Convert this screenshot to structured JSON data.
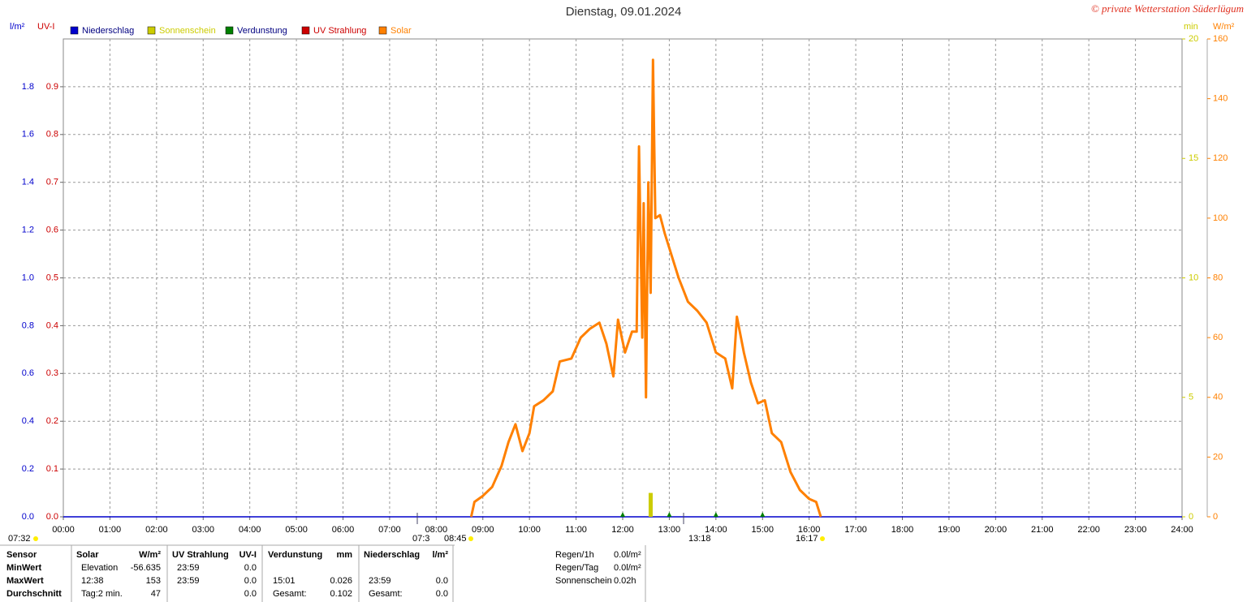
{
  "chart_data": {
    "type": "line",
    "title": "Dienstag, 09.01.2024",
    "copyright": "© private Wetterstation Süderlügum",
    "ylabel": "l/m²",
    "y3label": "UV-I",
    "y4label": "min",
    "y2label": "W/m²",
    "xlim": [
      0,
      24
    ],
    "xticks": [
      {
        "value": 0,
        "label": "00:00"
      },
      {
        "value": 1,
        "label": "01:00"
      },
      {
        "value": 2,
        "label": "02:00"
      },
      {
        "value": 3,
        "label": "03:00"
      },
      {
        "value": 4,
        "label": "04:00"
      },
      {
        "value": 5,
        "label": "05:00"
      },
      {
        "value": 6,
        "label": "06:00"
      },
      {
        "value": 7,
        "label": "07:00"
      },
      {
        "value": 8,
        "label": "08:00"
      },
      {
        "value": 9,
        "label": "09:00"
      },
      {
        "value": 10,
        "label": "10:00"
      },
      {
        "value": 11,
        "label": "11:00"
      },
      {
        "value": 12,
        "label": "12:00"
      },
      {
        "value": 13,
        "label": "13:00"
      },
      {
        "value": 14,
        "label": "14:00"
      },
      {
        "value": 15,
        "label": "15:00"
      },
      {
        "value": 16,
        "label": "16:00"
      },
      {
        "value": 17,
        "label": "17:00"
      },
      {
        "value": 18,
        "label": "18:00"
      },
      {
        "value": 19,
        "label": "19:00"
      },
      {
        "value": 20,
        "label": "20:00"
      },
      {
        "value": 21,
        "label": "21:00"
      },
      {
        "value": 22,
        "label": "22:00"
      },
      {
        "value": 23,
        "label": "23:00"
      },
      {
        "value": 24,
        "label": "24:00"
      }
    ],
    "ylim": [
      0,
      2
    ],
    "yticks": [
      {
        "value": 0,
        "label": "0.0"
      },
      0.2,
      0.4,
      0.6,
      0.8,
      {
        "value": 1,
        "label": "1.0"
      },
      {
        "value": 1.2,
        "label": "1.2"
      },
      {
        "value": 1.4,
        "label": "1.4"
      },
      {
        "value": 1.6,
        "label": "1.6"
      },
      {
        "value": 1.8,
        "label": "1.8"
      }
    ],
    "y3lim": [
      0,
      1
    ],
    "y3ticks": [
      {
        "value": 0,
        "label": "0.0"
      },
      0.1,
      0.2,
      0.3,
      0.4,
      0.5,
      0.6,
      0.7,
      0.8,
      0.9
    ],
    "y4lim": [
      0,
      20
    ],
    "y4ticks": [
      0,
      5,
      10,
      15,
      20
    ],
    "y2lim": [
      0,
      160
    ],
    "y2ticks": [
      0,
      20,
      40,
      60,
      80,
      100,
      120,
      140,
      160
    ],
    "grid": true,
    "series": [
      {
        "name": "Niederschlag",
        "color": "#0000cc",
        "axis": "y",
        "x": [
          0,
          24
        ],
        "values": [
          0,
          0
        ]
      },
      {
        "name": "Sonnenschein",
        "color": "#cccc00",
        "axis": "y4",
        "x": [
          12.6
        ],
        "values": [
          1
        ]
      },
      {
        "name": "Verdunstung",
        "color": "#008000",
        "axis": "y",
        "x": [
          12,
          13,
          14,
          15
        ],
        "values": [
          0.02,
          0.02,
          0.02,
          0.02
        ]
      },
      {
        "name": "UV Strahlung",
        "color": "#cc0000",
        "axis": "y3",
        "x": [],
        "values": []
      },
      {
        "name": "Solar",
        "color": "#ff8000",
        "axis": "y2",
        "x": [
          8.75,
          8.82,
          9.0,
          9.2,
          9.4,
          9.55,
          9.7,
          9.85,
          10.0,
          10.1,
          10.3,
          10.5,
          10.65,
          10.9,
          11.1,
          11.3,
          11.5,
          11.65,
          11.8,
          11.9,
          12.05,
          12.2,
          12.3,
          12.35,
          12.42,
          12.45,
          12.5,
          12.55,
          12.6,
          12.65,
          12.7,
          12.8,
          12.9,
          13.0,
          13.2,
          13.4,
          13.6,
          13.8,
          14.0,
          14.2,
          14.35,
          14.45,
          14.6,
          14.75,
          14.9,
          15.05,
          15.2,
          15.4,
          15.6,
          15.8,
          16.0,
          16.15,
          16.25
        ],
        "values": [
          0,
          5,
          7,
          10,
          17,
          25,
          31,
          22,
          28,
          37,
          39,
          42,
          52,
          53,
          60,
          63,
          65,
          58,
          47,
          66,
          55,
          62,
          62,
          124,
          60,
          105,
          40,
          112,
          75,
          153,
          100,
          101,
          95,
          90,
          80,
          72,
          69,
          65,
          55,
          53,
          43,
          67,
          55,
          45,
          38,
          39,
          28,
          25,
          15,
          9,
          6,
          5,
          0
        ]
      }
    ],
    "annotations": [
      "07:32",
      "07:3",
      "08:45",
      "13:18",
      "16:17"
    ]
  },
  "stats": {
    "row_labels": [
      "Sensor",
      "MinWert",
      "MaxWert",
      "Durchschnitt"
    ],
    "groups": [
      {
        "name": "Solar",
        "unit": "W/m²",
        "rows": [
          [
            "Elevation",
            "-56.635"
          ],
          [
            "12:38",
            "153"
          ],
          [
            "Tag:2 min.",
            "47"
          ]
        ]
      },
      {
        "name": "UV Strahlung",
        "unit": "UV-I",
        "rows": [
          [
            "23:59",
            "0.0"
          ],
          [
            "23:59",
            "0.0"
          ],
          [
            null,
            "0.0"
          ]
        ]
      },
      {
        "name": "Verdunstung",
        "unit": "mm",
        "rows": [
          [
            null,
            null
          ],
          [
            "15:01",
            "0.026"
          ],
          [
            "Gesamt:",
            "0.102"
          ]
        ]
      },
      {
        "name": "Niederschlag",
        "unit": "l/m²",
        "rows": [
          [
            null,
            null
          ],
          [
            "23:59",
            "0.0"
          ],
          [
            "Gesamt:",
            "0.0"
          ]
        ]
      }
    ],
    "summary": [
      [
        "Regen/1h",
        "0.0l/m²"
      ],
      [
        "Regen/Tag",
        "0.0l/m²"
      ],
      [
        "Sonnenschein",
        "0.02h"
      ]
    ]
  }
}
